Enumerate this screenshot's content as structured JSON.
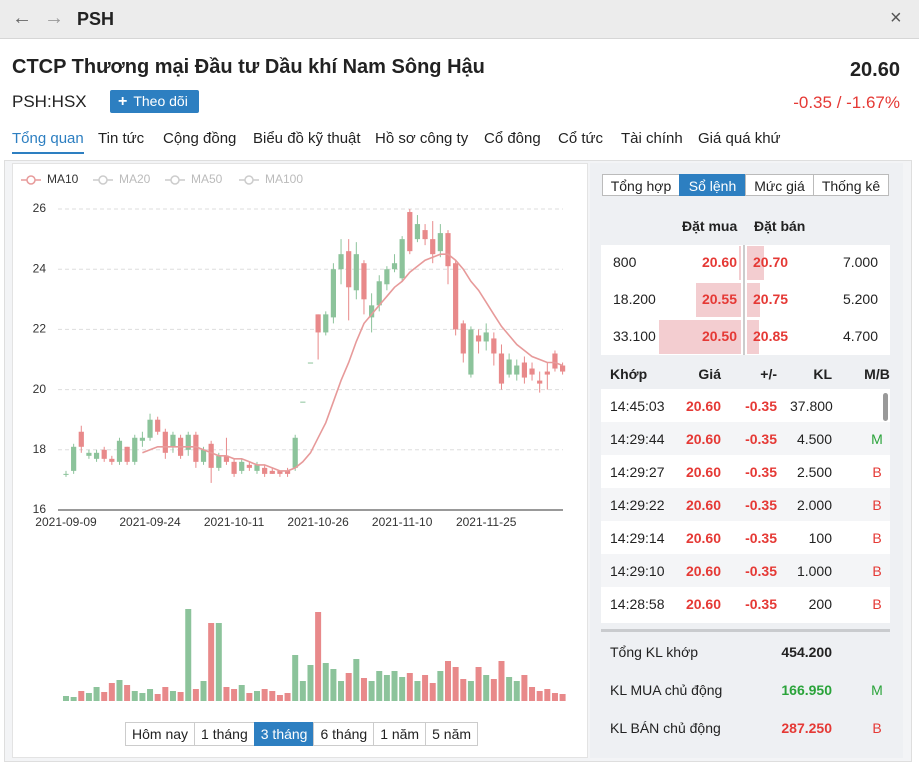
{
  "window": {
    "title": "PSH"
  },
  "header": {
    "company": "CTCP Thương mại Đầu tư Dầu khí Nam Sông Hậu",
    "price": "20.60",
    "ticker": "PSH:HSX",
    "follow_button": "Theo dõi",
    "change": "-0.35 / -1.67%"
  },
  "tabs": {
    "items": [
      "Tổng quan",
      "Tin tức",
      "Cộng đồng",
      "Biểu đồ kỹ thuật",
      "Hồ sơ công ty",
      "Cổ đông",
      "Cổ tức",
      "Tài chính",
      "Giá quá khứ"
    ],
    "active": 0
  },
  "chart_data": {
    "type": "candlestick",
    "categories": [
      "2021-09-09",
      null,
      null,
      null,
      null,
      null,
      null,
      null,
      null,
      null,
      null,
      "2021-09-24",
      null,
      null,
      null,
      null,
      null,
      null,
      null,
      null,
      null,
      null,
      "2021-10-11",
      null,
      null,
      null,
      null,
      null,
      null,
      null,
      null,
      null,
      null,
      "2021-10-26",
      null,
      null,
      null,
      null,
      null,
      null,
      null,
      null,
      null,
      null,
      "2021-11-10",
      null,
      null,
      null,
      null,
      null,
      null,
      null,
      null,
      null,
      null,
      "2021-11-25",
      null,
      null,
      null,
      null,
      null,
      null,
      null,
      null,
      null,
      null
    ],
    "open": [
      17.2,
      17.3,
      18.6,
      17.8,
      17.7,
      18.0,
      17.7,
      17.6,
      18.1,
      17.6,
      18.3,
      18.4,
      19.0,
      18.6,
      18.1,
      18.4,
      18.0,
      18.5,
      17.6,
      18.2,
      17.4,
      17.8,
      17.6,
      17.3,
      17.5,
      17.3,
      17.4,
      17.3,
      17.3,
      17.3,
      17.4,
      19.6,
      20.9,
      22.5,
      21.9,
      22.4,
      24.0,
      24.6,
      23.3,
      24.2,
      22.4,
      22.8,
      23.5,
      24.0,
      23.7,
      25.9,
      25.0,
      25.3,
      25.0,
      24.6,
      25.2,
      24.2,
      22.2,
      20.5,
      21.8,
      21.6,
      21.7,
      21.2,
      20.5,
      20.5,
      20.9,
      20.7,
      20.3,
      20.6,
      21.2,
      20.8
    ],
    "close": [
      17.2,
      18.1,
      18.1,
      17.9,
      17.9,
      17.7,
      17.6,
      18.3,
      17.6,
      18.4,
      18.4,
      19.0,
      18.6,
      17.9,
      18.5,
      17.8,
      18.5,
      17.6,
      18.0,
      17.4,
      17.8,
      17.6,
      17.2,
      17.6,
      17.4,
      17.5,
      17.2,
      17.2,
      17.2,
      17.2,
      18.4,
      19.6,
      20.9,
      21.9,
      22.5,
      24.0,
      24.5,
      23.4,
      24.5,
      23.0,
      22.8,
      23.6,
      24.0,
      24.2,
      25.0,
      24.6,
      25.5,
      25.0,
      24.5,
      25.2,
      24.1,
      22.0,
      21.2,
      22.0,
      21.6,
      21.9,
      21.2,
      20.2,
      21.0,
      20.8,
      20.4,
      20.5,
      20.2,
      20.5,
      20.7,
      20.6
    ],
    "low": [
      17.1,
      17.2,
      17.9,
      17.7,
      17.6,
      17.6,
      17.5,
      17.5,
      17.5,
      17.5,
      18.1,
      18.3,
      18.5,
      17.7,
      17.9,
      17.7,
      17.8,
      17.4,
      17.5,
      16.9,
      17.3,
      17.5,
      17.1,
      17.2,
      17.3,
      17.2,
      17.1,
      17.2,
      17.1,
      17.1,
      17.3,
      19.6,
      20.9,
      21.0,
      21.8,
      22.2,
      23.5,
      22.3,
      23.0,
      22.5,
      21.9,
      22.6,
      23.3,
      23.9,
      23.6,
      24.5,
      24.9,
      24.8,
      24.2,
      24.4,
      23.5,
      21.8,
      20.9,
      20.4,
      21.2,
      21.3,
      20.8,
      20.0,
      20.4,
      20.3,
      20.2,
      20.3,
      19.9,
      20.0,
      20.6,
      20.5
    ],
    "high": [
      17.3,
      18.2,
      18.8,
      18.0,
      18.0,
      18.1,
      17.8,
      18.4,
      18.1,
      18.5,
      18.6,
      19.2,
      19.1,
      18.7,
      18.6,
      18.5,
      18.6,
      18.6,
      18.1,
      18.3,
      17.9,
      18.4,
      17.7,
      17.7,
      17.6,
      17.6,
      17.5,
      17.4,
      17.3,
      17.4,
      18.5,
      19.6,
      20.9,
      22.5,
      22.6,
      24.2,
      25.0,
      25.0,
      24.9,
      24.3,
      23.2,
      23.8,
      24.1,
      24.5,
      25.1,
      26.0,
      25.8,
      25.5,
      25.6,
      25.5,
      25.3,
      24.3,
      22.3,
      22.1,
      22.0,
      22.2,
      21.9,
      21.5,
      21.2,
      21.0,
      21.1,
      20.9,
      20.6,
      20.9,
      21.3,
      20.9
    ],
    "volume": [
      5,
      4,
      10,
      8,
      14,
      9,
      18,
      21,
      16,
      10,
      8,
      12,
      7,
      14,
      10,
      9,
      92,
      12,
      20,
      78,
      78,
      14,
      12,
      16,
      8,
      10,
      12,
      10,
      6,
      8,
      46,
      20,
      36,
      89,
      38,
      32,
      20,
      28,
      42,
      23,
      20,
      30,
      26,
      30,
      24,
      28,
      20,
      26,
      18,
      30,
      40,
      34,
      22,
      20,
      34,
      26,
      22,
      40,
      24,
      20,
      26,
      14,
      10,
      12,
      8,
      7
    ],
    "series": [
      {
        "name": "MA10",
        "color": "#e79a9a",
        "values": [
          null,
          null,
          null,
          null,
          null,
          null,
          null,
          null,
          null,
          null,
          17.9,
          18.0,
          18.1,
          18.1,
          18.1,
          18.1,
          18.1,
          18.1,
          18.0,
          17.9,
          17.8,
          17.8,
          17.7,
          17.7,
          17.6,
          17.5,
          17.5,
          17.4,
          17.3,
          17.3,
          17.4,
          17.6,
          17.9,
          18.4,
          18.9,
          19.6,
          20.3,
          20.9,
          21.6,
          22.2,
          22.5,
          22.8,
          23.1,
          23.4,
          23.6,
          23.9,
          24.1,
          24.3,
          24.4,
          24.5,
          24.5,
          24.3,
          24.0,
          23.6,
          23.3,
          22.9,
          22.5,
          22.1,
          21.8,
          21.5,
          21.3,
          21.1,
          21.0,
          20.9,
          20.9,
          20.8
        ]
      },
      {
        "name": "MA20",
        "color": "#cccccc",
        "hidden": true
      },
      {
        "name": "MA50",
        "color": "#cccccc",
        "hidden": true
      },
      {
        "name": "MA100",
        "color": "#cccccc",
        "hidden": true
      }
    ],
    "colors": {
      "up": "#8cc39b",
      "down": "#e8898a"
    },
    "ylim": [
      16,
      26.3
    ],
    "yticks": [
      16,
      18,
      20,
      22,
      24,
      26
    ],
    "grid": true,
    "range_buttons": [
      "Hôm nay",
      "1 tháng",
      "3 tháng",
      "6 tháng",
      "1 năm",
      "5 năm"
    ],
    "active_range": 2
  },
  "side_panel": {
    "tabs": [
      "Tổng hợp",
      "Sổ lệnh",
      "Mức giá",
      "Thống kê"
    ],
    "active_tab": 1,
    "order_book": {
      "headers": [
        "Đặt mua",
        "Đặt bán"
      ],
      "rows": [
        {
          "bid_volume": {
            "value": 800,
            "label": "800"
          },
          "bid_price": "20.60",
          "ask_price": "20.70",
          "ask_volume": {
            "value": 7000,
            "label": "7.000"
          }
        },
        {
          "bid_volume": {
            "value": 18200,
            "label": "18.200"
          },
          "bid_price": "20.55",
          "ask_price": "20.75",
          "ask_volume": {
            "value": 5200,
            "label": "5.200"
          }
        },
        {
          "bid_volume": {
            "value": 33100,
            "label": "33.100"
          },
          "bid_price": "20.50",
          "ask_price": "20.85",
          "ask_volume": {
            "value": 4700,
            "label": "4.700"
          }
        }
      ]
    },
    "trades": {
      "headers": [
        "Khớp",
        "Giá",
        "+/-",
        "KL",
        "M/B"
      ],
      "rows": [
        {
          "time": "14:45:03",
          "price": "20.60",
          "change": "-0.35",
          "volume": "37.800"
        },
        {
          "time": "14:29:44",
          "price": "20.60",
          "change": "-0.35",
          "volume": "4.500",
          "side": "M"
        },
        {
          "time": "14:29:27",
          "price": "20.60",
          "change": "-0.35",
          "volume": "2.500",
          "side": "B"
        },
        {
          "time": "14:29:22",
          "price": "20.60",
          "change": "-0.35",
          "volume": "2.000",
          "side": "B"
        },
        {
          "time": "14:29:14",
          "price": "20.60",
          "change": "-0.35",
          "volume": "100",
          "side": "B"
        },
        {
          "time": "14:29:10",
          "price": "20.60",
          "change": "-0.35",
          "volume": "1.000",
          "side": "B"
        },
        {
          "time": "14:28:58",
          "price": "20.60",
          "change": "-0.35",
          "volume": "200",
          "side": "B"
        }
      ]
    },
    "summary": [
      {
        "label": "Tổng KL khớp",
        "value": "454.200"
      },
      {
        "label": "KL MUA chủ động",
        "value": "166.950",
        "side": "M"
      },
      {
        "label": "KL BÁN chủ động",
        "value": "287.250",
        "side": "B"
      }
    ]
  }
}
